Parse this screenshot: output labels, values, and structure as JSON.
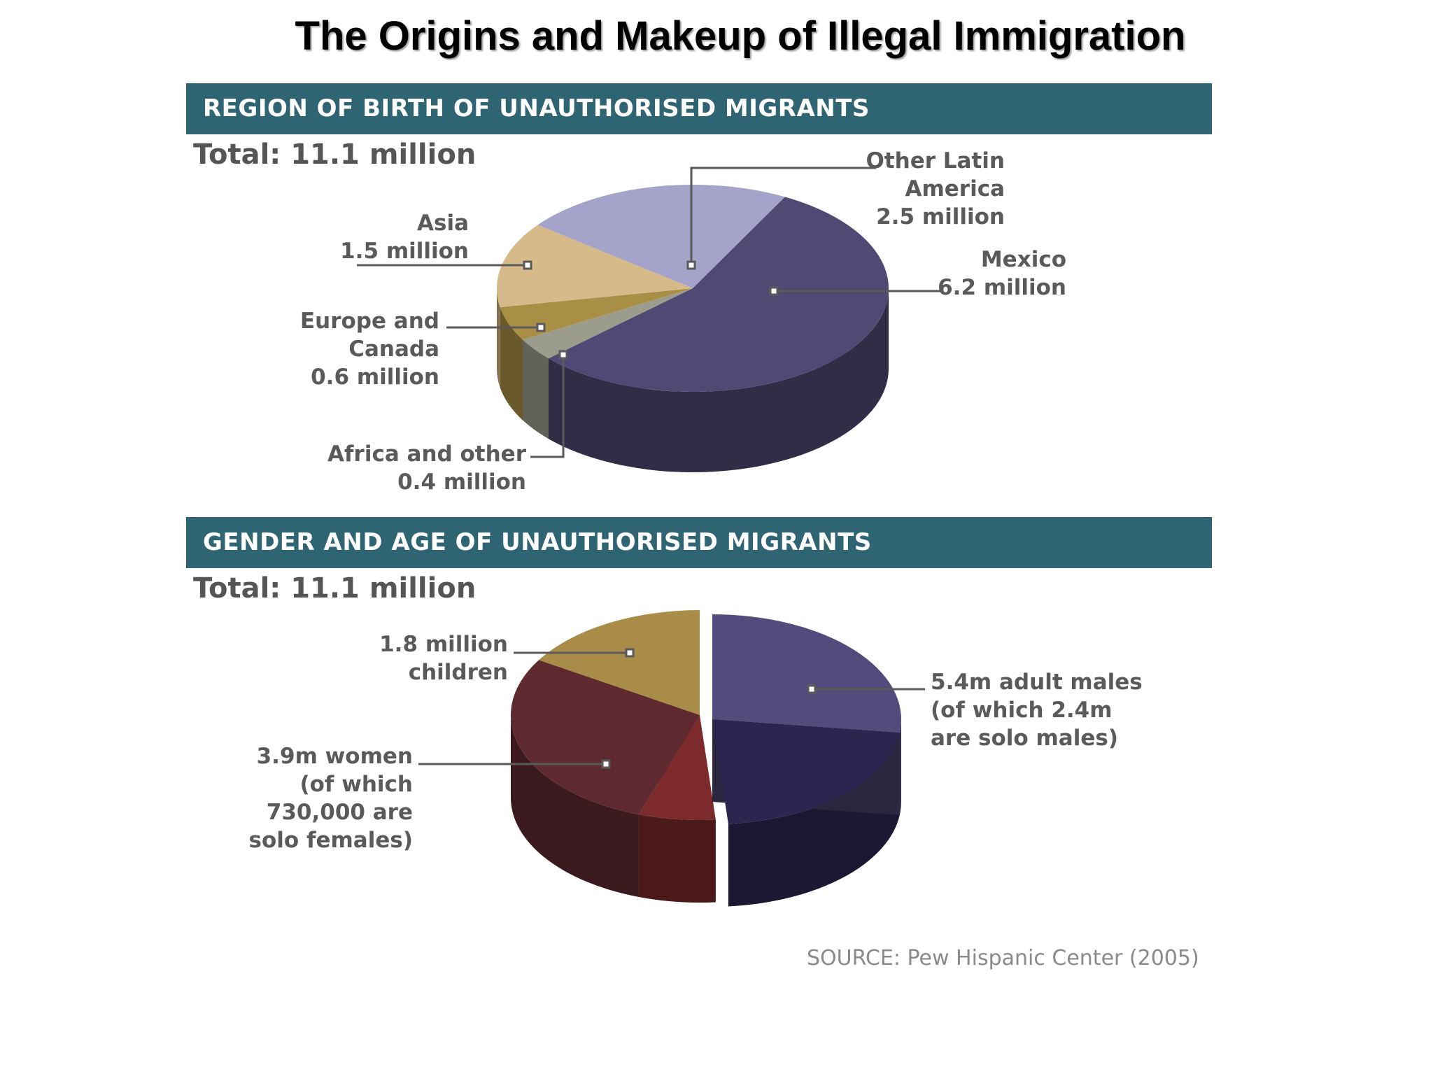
{
  "title": "The Origins and Makeup of Illegal Immigration",
  "source": "SOURCE: Pew Hispanic Center (2005)",
  "chart_data": [
    {
      "type": "pie",
      "title": "REGION OF BIRTH OF UNAUTHORISED MIGRANTS",
      "total_label": "Total: 11.1 million",
      "unit": "million",
      "slices": [
        {
          "name": "Mexico",
          "value": 6.2,
          "color": "#4e4a73",
          "label_lines": [
            "Mexico",
            "6.2 million"
          ]
        },
        {
          "name": "Africa and other",
          "value": 0.4,
          "color": "#9c9c8c",
          "label_lines": [
            "Africa and other",
            "0.4 million"
          ]
        },
        {
          "name": "Europe and Canada",
          "value": 0.6,
          "color": "#a98f45",
          "label_lines": [
            "Europe and",
            "Canada",
            "0.6 million"
          ]
        },
        {
          "name": "Asia",
          "value": 1.5,
          "color": "#d6ba8a",
          "label_lines": [
            "Asia",
            "1.5 million"
          ]
        },
        {
          "name": "Other Latin America",
          "value": 2.5,
          "color": "#a6a3cb",
          "label_lines": [
            "Other Latin",
            "America",
            "2.5 million"
          ]
        }
      ]
    },
    {
      "type": "pie",
      "title": "GENDER AND AGE OF UNAUTHORISED MIGRANTS",
      "total_label": "Total: 11.1 million",
      "unit": "million",
      "slices": [
        {
          "name": "adult males",
          "value": 5.4,
          "sub_value": 2.4,
          "color": "#514c7c",
          "sub_color": "#2a2650",
          "label_lines": [
            "5.4m adult males",
            "(of which 2.4m",
            "are solo males)"
          ]
        },
        {
          "name": "women",
          "value": 3.9,
          "sub_value": 0.73,
          "color": "#5e2a30",
          "sub_color": "#7c2a2c",
          "label_lines": [
            "3.9m women",
            "(of which",
            "730,000 are",
            "solo females)"
          ]
        },
        {
          "name": "children",
          "value": 1.8,
          "color": "#a88c48",
          "label_lines": [
            "1.8 million",
            "children"
          ]
        }
      ]
    }
  ]
}
